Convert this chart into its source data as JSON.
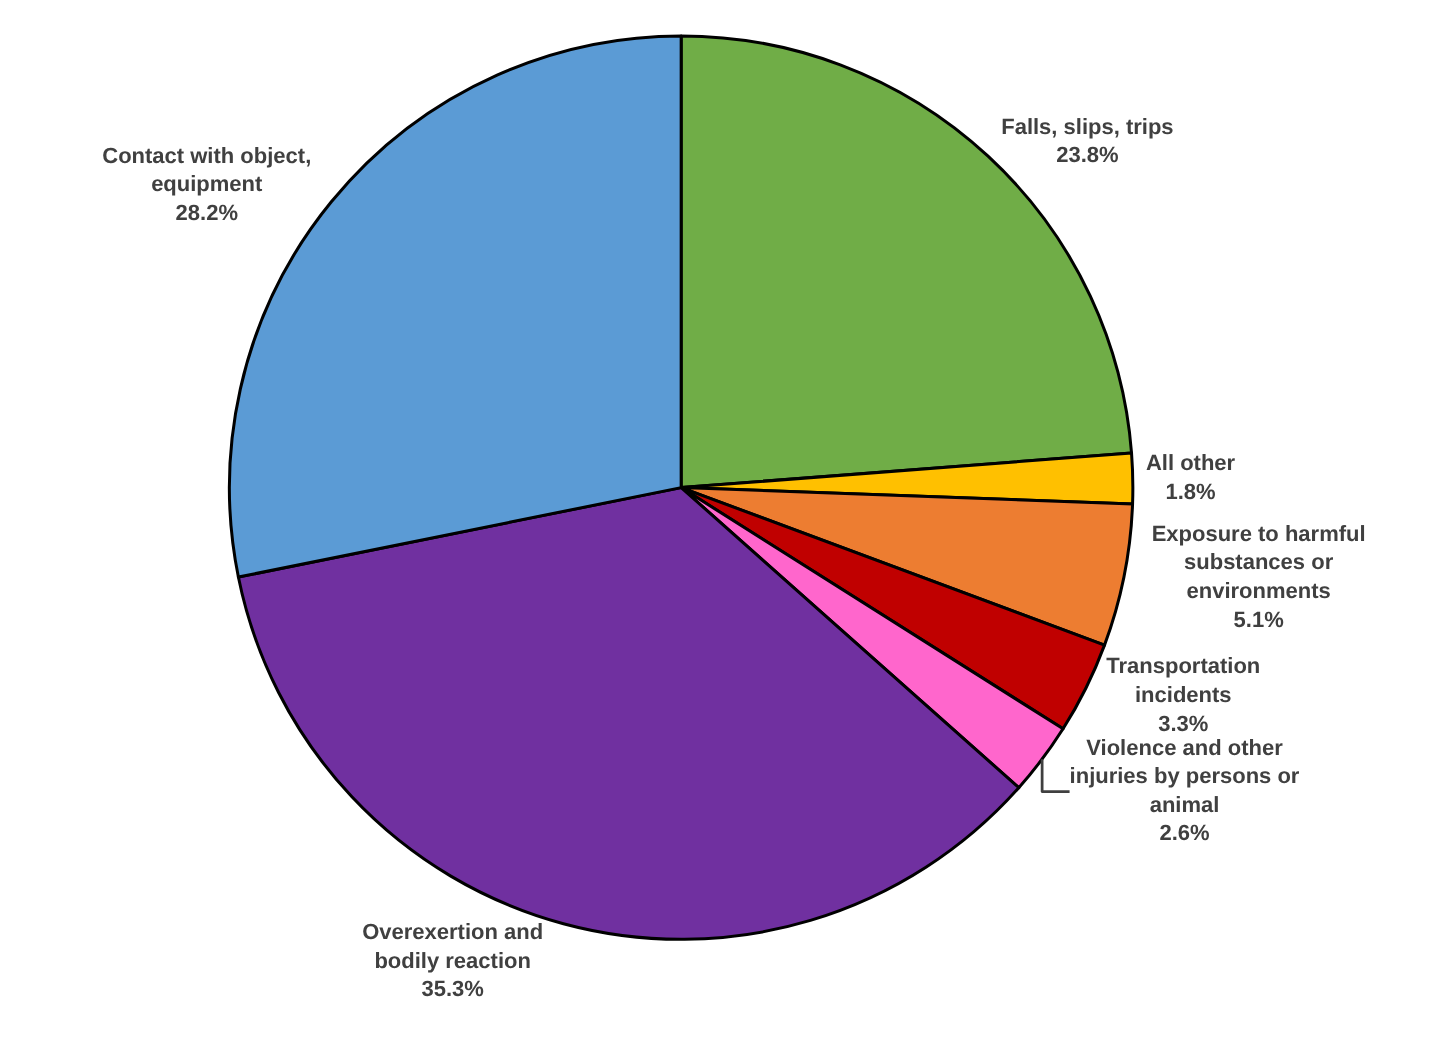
{
  "chart_data": {
    "type": "pie",
    "categories": [
      "Falls, slips, trips",
      "All other",
      "Exposure to harmful substances or environments",
      "Transportation incidents",
      "Violence and other injuries by persons or animal",
      "Overexertion and bodily reaction",
      "Contact with object, equipment"
    ],
    "values": [
      23.8,
      1.8,
      5.1,
      3.3,
      2.6,
      35.3,
      28.2
    ],
    "value_labels": [
      "23.8%",
      "1.8%",
      "5.1%",
      "3.3%",
      "2.6%",
      "35.3%",
      "28.2%"
    ],
    "colors": [
      "#70ad47",
      "#ffc000",
      "#ed7d31",
      "#c00000",
      "#ff66cc",
      "#7030a0",
      "#5b9bd5"
    ],
    "legend": false
  }
}
